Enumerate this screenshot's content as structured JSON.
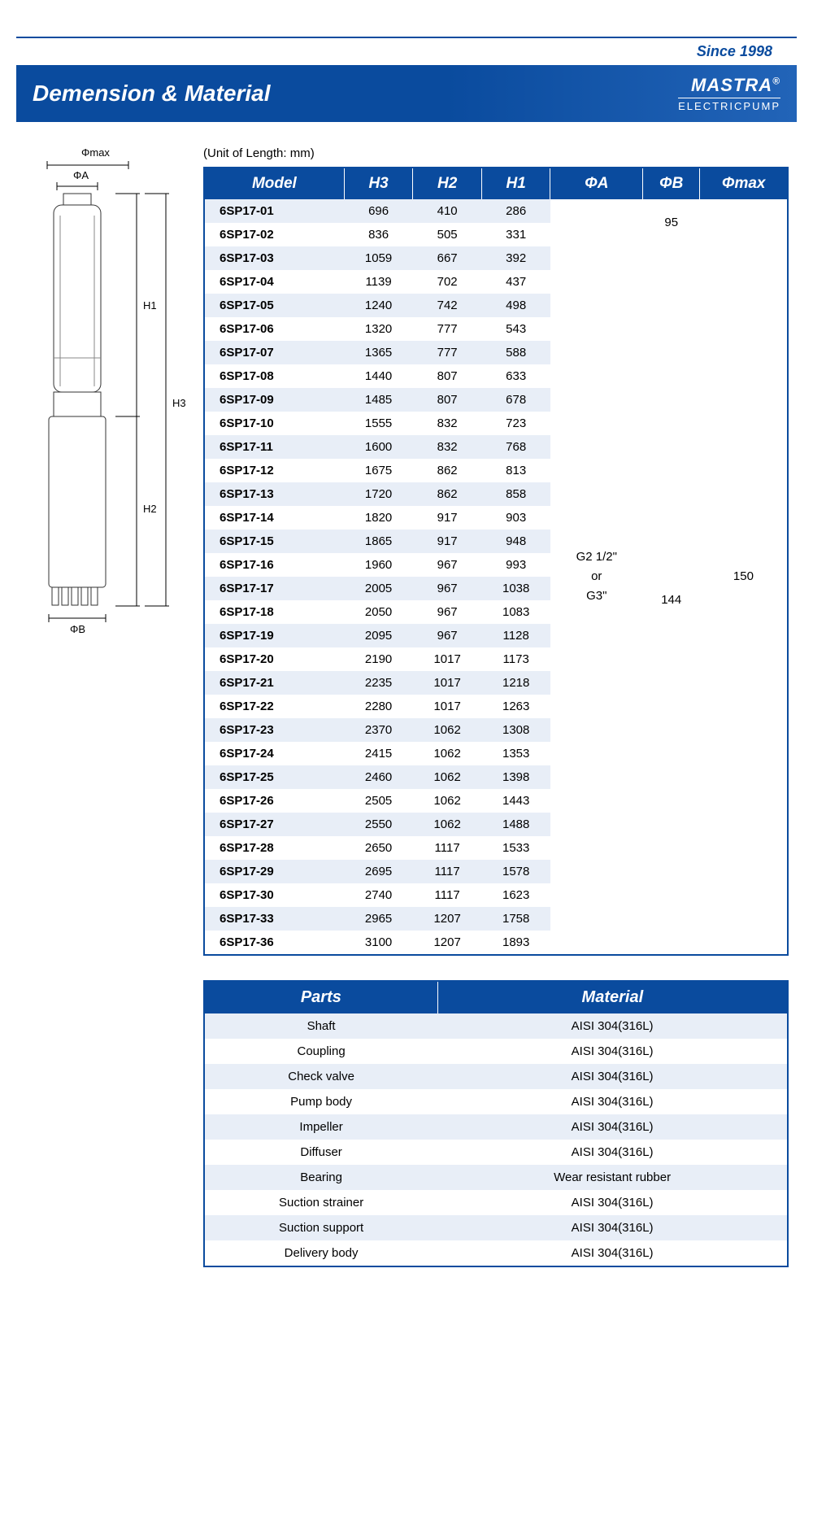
{
  "header": {
    "since": "Since 1998",
    "title": "Demension & Material",
    "brand": "MASTRA",
    "brand_sub": "ELECTRICPUMP"
  },
  "diagram": {
    "phi_max": "Φmax",
    "phi_a": "ΦA",
    "phi_b": "ΦB",
    "h1": "H1",
    "h2": "H2",
    "h3": "H3"
  },
  "dim_table": {
    "unit_note": "(Unit of Length: mm)",
    "columns": [
      "Model",
      "H3",
      "H2",
      "H1",
      "ΦA",
      "ΦB",
      "Φmax"
    ],
    "phi_a_val": "G2 1/2\"\nor\nG3\"",
    "phi_b_val1": "95",
    "phi_b_val2": "144",
    "phi_max_val": "150",
    "rows": [
      [
        "6SP17-01",
        "696",
        "410",
        "286"
      ],
      [
        "6SP17-02",
        "836",
        "505",
        "331"
      ],
      [
        "6SP17-03",
        "1059",
        "667",
        "392"
      ],
      [
        "6SP17-04",
        "1139",
        "702",
        "437"
      ],
      [
        "6SP17-05",
        "1240",
        "742",
        "498"
      ],
      [
        "6SP17-06",
        "1320",
        "777",
        "543"
      ],
      [
        "6SP17-07",
        "1365",
        "777",
        "588"
      ],
      [
        "6SP17-08",
        "1440",
        "807",
        "633"
      ],
      [
        "6SP17-09",
        "1485",
        "807",
        "678"
      ],
      [
        "6SP17-10",
        "1555",
        "832",
        "723"
      ],
      [
        "6SP17-11",
        "1600",
        "832",
        "768"
      ],
      [
        "6SP17-12",
        "1675",
        "862",
        "813"
      ],
      [
        "6SP17-13",
        "1720",
        "862",
        "858"
      ],
      [
        "6SP17-14",
        "1820",
        "917",
        "903"
      ],
      [
        "6SP17-15",
        "1865",
        "917",
        "948"
      ],
      [
        "6SP17-16",
        "1960",
        "967",
        "993"
      ],
      [
        "6SP17-17",
        "2005",
        "967",
        "1038"
      ],
      [
        "6SP17-18",
        "2050",
        "967",
        "1083"
      ],
      [
        "6SP17-19",
        "2095",
        "967",
        "1128"
      ],
      [
        "6SP17-20",
        "2190",
        "1017",
        "1173"
      ],
      [
        "6SP17-21",
        "2235",
        "1017",
        "1218"
      ],
      [
        "6SP17-22",
        "2280",
        "1017",
        "1263"
      ],
      [
        "6SP17-23",
        "2370",
        "1062",
        "1308"
      ],
      [
        "6SP17-24",
        "2415",
        "1062",
        "1353"
      ],
      [
        "6SP17-25",
        "2460",
        "1062",
        "1398"
      ],
      [
        "6SP17-26",
        "2505",
        "1062",
        "1443"
      ],
      [
        "6SP17-27",
        "2550",
        "1062",
        "1488"
      ],
      [
        "6SP17-28",
        "2650",
        "1117",
        "1533"
      ],
      [
        "6SP17-29",
        "2695",
        "1117",
        "1578"
      ],
      [
        "6SP17-30",
        "2740",
        "1117",
        "1623"
      ],
      [
        "6SP17-33",
        "2965",
        "1207",
        "1758"
      ],
      [
        "6SP17-36",
        "3100",
        "1207",
        "1893"
      ]
    ]
  },
  "mat_table": {
    "columns": [
      "Parts",
      "Material"
    ],
    "rows": [
      [
        "Shaft",
        "AISI 304(316L)"
      ],
      [
        "Coupling",
        "AISI 304(316L)"
      ],
      [
        "Check valve",
        "AISI 304(316L)"
      ],
      [
        "Pump body",
        "AISI 304(316L)"
      ],
      [
        "Impeller",
        "AISI 304(316L)"
      ],
      [
        "Diffuser",
        "AISI 304(316L)"
      ],
      [
        "Bearing",
        "Wear resistant rubber"
      ],
      [
        "Suction strainer",
        "AISI 304(316L)"
      ],
      [
        "Suction support",
        "AISI 304(316L)"
      ],
      [
        "Delivery body",
        "AISI 304(316L)"
      ]
    ]
  }
}
